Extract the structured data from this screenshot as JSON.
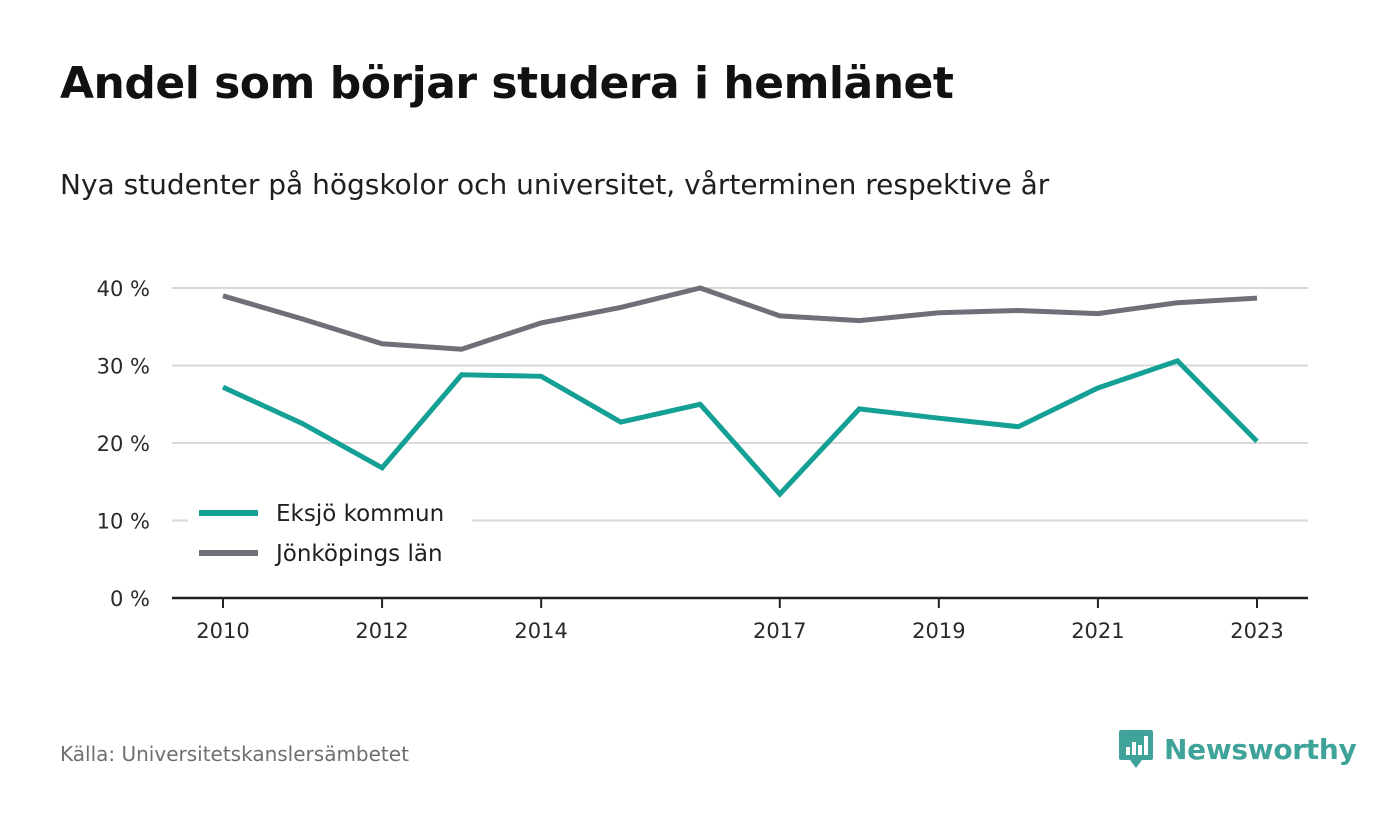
{
  "title": "Andel som börjar studera i hemlänet",
  "subtitle": "Nya studenter på högskolor och universitet, vårterminen respektive år",
  "source": "Källa: Universitetskanslersämbetet",
  "brand": "Newsworthy",
  "colors": {
    "eksjo": "#14a094",
    "jonkoping": "#706f77",
    "grid": "#d9d9d9",
    "axis": "#222222",
    "brand": "#3fa39a"
  },
  "chart_data": {
    "type": "line",
    "x": [
      2010,
      2011,
      2012,
      2013,
      2014,
      2015,
      2016,
      2017,
      2018,
      2019,
      2020,
      2021,
      2022,
      2023
    ],
    "x_tick_labels": [
      "2010",
      "2012",
      "2014",
      "2017",
      "2019",
      "2021",
      "2023"
    ],
    "y_tick_labels": [
      "0 %",
      "10 %",
      "20 %",
      "30 %",
      "40 %"
    ],
    "ylim": [
      0,
      40
    ],
    "grid": true,
    "legend_position": "bottom-left",
    "series": [
      {
        "name": "Eksjö kommun",
        "color": "#14a094",
        "values": [
          27.2,
          22.5,
          16.8,
          28.8,
          28.6,
          22.7,
          25.0,
          13.4,
          24.4,
          23.2,
          22.1,
          27.1,
          30.6,
          20.2
        ]
      },
      {
        "name": "Jönköpings län",
        "color": "#706f77",
        "values": [
          39.0,
          36.0,
          32.8,
          32.1,
          35.5,
          37.5,
          40.0,
          36.4,
          35.8,
          36.8,
          37.1,
          36.7,
          38.1,
          38.7
        ]
      }
    ]
  }
}
